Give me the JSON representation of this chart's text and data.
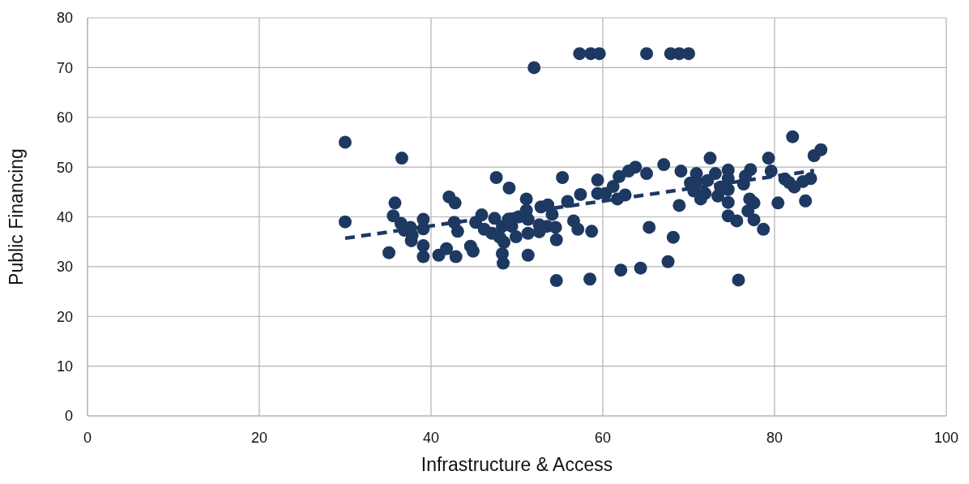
{
  "chart_data": {
    "type": "scatter",
    "xlabel": "Infrastructure & Access",
    "ylabel": "Public Financing",
    "xlim": [
      0,
      100
    ],
    "xticks": [
      0,
      20,
      40,
      60,
      80,
      100
    ],
    "ylim": [
      0,
      80
    ],
    "yticks": [
      0,
      10,
      20,
      30,
      40,
      50,
      60,
      70,
      80
    ],
    "grid": true,
    "series": [
      {
        "color": "#1d3961",
        "marker": "circle",
        "x": [
          30,
          30,
          35.1,
          35.8,
          35.6,
          36.5,
          36.6,
          36.9,
          37.6,
          37.7,
          37.8,
          39.1,
          39.1,
          39.1,
          39.1,
          40.9,
          41.8,
          42.1,
          42.8,
          42.7,
          43.1,
          42.9,
          44.6,
          44.9,
          45.2,
          45.9,
          46.2,
          47.1,
          47.4,
          47.6,
          48,
          48.3,
          48.3,
          48.4,
          48.5,
          49,
          49.1,
          49.4,
          49.9,
          50.2,
          51.1,
          51.1,
          51.3,
          51.3,
          51.3,
          52,
          52.6,
          52.8,
          52.6,
          53.5,
          53.6,
          54.1,
          54.5,
          54.6,
          54.6,
          55.3,
          55.9,
          56.6,
          57.1,
          57.3,
          57.4,
          58.5,
          58.6,
          58.7,
          59.6,
          59.4,
          59.4,
          60.3,
          61.2,
          61.7,
          61.9,
          62.1,
          62.6,
          63,
          63.8,
          64.4,
          65.1,
          65.1,
          65.4,
          67.1,
          67.6,
          67.9,
          68.2,
          68.9,
          68.9,
          69.1,
          70,
          70.2,
          70.6,
          70.9,
          70.9,
          71.4,
          71.9,
          72.2,
          72.5,
          73.1,
          73.4,
          73.7,
          74.6,
          74.6,
          74.6,
          74.6,
          74.6,
          75.6,
          75.8,
          76.4,
          76.6,
          76.9,
          77.1,
          77.2,
          77.6,
          77.6,
          78.7,
          79.3,
          79.6,
          80.4,
          81.2,
          81.7,
          82.1,
          82.3,
          83.3,
          83.6,
          84.2,
          84.6,
          85.4
        ],
        "values": [
          55,
          39,
          32.8,
          42.8,
          40.2,
          38.7,
          51.8,
          37.3,
          37.9,
          35.2,
          36.3,
          39.5,
          37.6,
          34.2,
          32,
          32.3,
          33.6,
          44,
          42.8,
          38.9,
          37.1,
          32,
          34.1,
          33.1,
          38.9,
          40.4,
          37.5,
          36.7,
          39.7,
          47.9,
          35.9,
          38.1,
          32.6,
          30.7,
          34.9,
          39.5,
          45.8,
          38.1,
          36,
          40,
          43.6,
          41.3,
          39.5,
          36.7,
          32.3,
          70,
          37,
          42,
          38.4,
          38.1,
          42.4,
          40.5,
          37.9,
          35.4,
          27.2,
          47.9,
          43.1,
          39.2,
          37.5,
          72.8,
          44.5,
          27.5,
          72.8,
          37.1,
          72.8,
          44.7,
          47.4,
          44.7,
          46.1,
          43.6,
          48.1,
          29.3,
          44.4,
          49.2,
          50,
          29.7,
          72.8,
          48.7,
          37.9,
          50.5,
          31,
          72.8,
          35.9,
          72.8,
          42.3,
          49.2,
          72.8,
          46.8,
          45.2,
          48.7,
          47.1,
          43.6,
          44.7,
          47.3,
          51.8,
          48.7,
          44.2,
          46,
          49.4,
          47.7,
          45.5,
          42.9,
          40.2,
          39.2,
          27.3,
          46.6,
          48.2,
          41.2,
          43.6,
          49.5,
          42.8,
          39.4,
          37.5,
          51.8,
          49.2,
          42.8,
          47.6,
          46.9,
          56.1,
          46,
          47.1,
          43.2,
          47.7,
          52.3,
          53.5
        ]
      },
      {
        "type": "line",
        "color": "#1d3961",
        "marker": "none",
        "line_style": "dashed",
        "x": [
          30,
          84.6
        ],
        "values": [
          35.7,
          49.3
        ]
      }
    ]
  }
}
